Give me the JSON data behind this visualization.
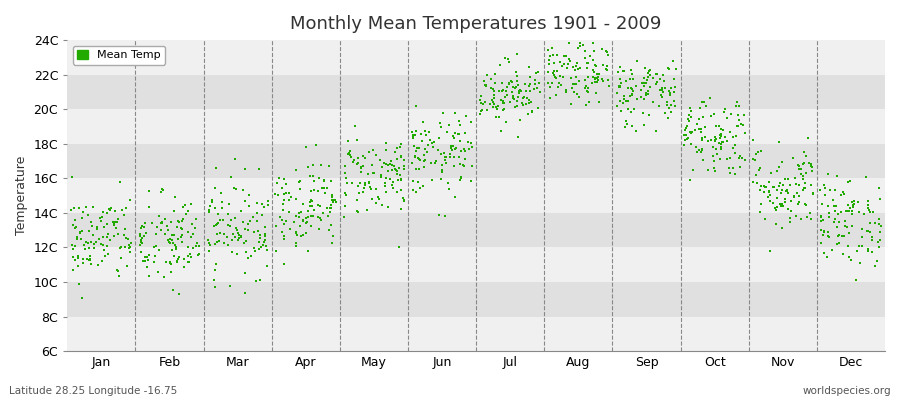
{
  "title": "Monthly Mean Temperatures 1901 - 2009",
  "ylabel": "Temperature",
  "xlabel_labels": [
    "Jan",
    "Feb",
    "Mar",
    "Apr",
    "May",
    "Jun",
    "Jul",
    "Aug",
    "Sep",
    "Oct",
    "Nov",
    "Dec"
  ],
  "subtitle_left": "Latitude 28.25 Longitude -16.75",
  "subtitle_right": "worldspecies.org",
  "legend_label": "Mean Temp",
  "dot_color": "#22aa00",
  "background_color": "#ffffff",
  "plot_bg_color": "#ffffff",
  "band_color_light": "#f0f0f0",
  "band_color_dark": "#e0e0e0",
  "ytick_labels": [
    "6C",
    "8C",
    "10C",
    "12C",
    "14C",
    "16C",
    "18C",
    "20C",
    "22C",
    "24C"
  ],
  "ytick_values": [
    6,
    8,
    10,
    12,
    14,
    16,
    18,
    20,
    22,
    24
  ],
  "ylim": [
    6,
    24
  ],
  "xlim": [
    0,
    12
  ],
  "years": 109,
  "monthly_means": [
    12.5,
    12.3,
    13.2,
    14.5,
    16.2,
    17.3,
    21.0,
    22.0,
    21.0,
    18.5,
    15.5,
    13.5
  ],
  "monthly_stds": [
    1.3,
    1.4,
    1.4,
    1.3,
    1.2,
    1.2,
    0.9,
    0.9,
    1.0,
    1.2,
    1.3,
    1.3
  ],
  "seed": 42
}
